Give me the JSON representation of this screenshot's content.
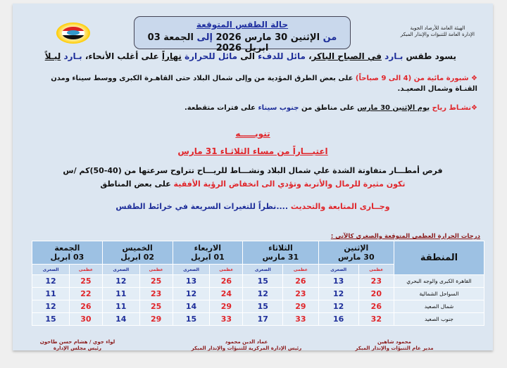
{
  "header": {
    "org_line1": "الهيئة العامة للأرصاد الجوية",
    "org_line2": "الإدارة العامة للتنبؤات والإنذار المبكر",
    "title": "حالة الطقس المتوقعة",
    "period": [
      {
        "t": "من ",
        "c": "blue"
      },
      {
        "t": "الإثنين 30 مارس 2026 ",
        "c": "dk"
      },
      {
        "t": "إلى",
        "c": "blue"
      },
      {
        "t": " الجمعة 03 ابريل 2026",
        "c": "dk"
      }
    ]
  },
  "summary": [
    {
      "t": "يسود طقس ",
      "c": "dk"
    },
    {
      "t": "بـارد ",
      "c": "blue"
    },
    {
      "t": "في الصباح الباكر",
      "c": "dk",
      "u": 1
    },
    {
      "t": "، ",
      "c": "dk"
    },
    {
      "t": "مائل للدفء",
      "c": "blue"
    },
    {
      "t": " الى ",
      "c": "dk"
    },
    {
      "t": "مائل للحرارة ",
      "c": "blue"
    },
    {
      "t": "نهاراً",
      "c": "dk",
      "u": 1
    },
    {
      "t": " على أغلب الأنحاء، ",
      "c": "dk"
    },
    {
      "t": "بـارد ",
      "c": "blue"
    },
    {
      "t": "ليـلاً",
      "c": "dk",
      "u": 1
    }
  ],
  "bullets": [
    [
      {
        "t": "❖ ",
        "c": "red"
      },
      {
        "t": "شبورة مائية من (4 الى 9 صباحاً)",
        "c": "red"
      },
      {
        "t": " على بعض الطرق المؤدية من وإلى شمال البلاد حتى القاهـرة الكبرى ووسط سيناء ومدن القنـاة وشمال الصعيـد.",
        "c": "dk"
      }
    ],
    [
      {
        "t": "❖",
        "c": "red"
      },
      {
        "t": "نشـاط رياح ",
        "c": "red"
      },
      {
        "t": "يوم الإثنين 30 مارس",
        "c": "dk",
        "u": 1
      },
      {
        "t": " على مناطق من ",
        "c": "dk"
      },
      {
        "t": "جنوب سيناء",
        "c": "blue"
      },
      {
        "t": " على فترات متقطعة.",
        "c": "dk"
      }
    ]
  ],
  "notice": {
    "title": "تنويـــــه",
    "subtitle": "اعتبـــاراً من مساء الثلاثـاء 31 مارس",
    "line1": "فرص أمطـــار متفاوتة الشدة علي شمال البلاد ونشـــاط للريـــاح تتراوح سرعتها من (40-50)كم /س",
    "line2": [
      {
        "t": "تكون مثيرة للرمال والأتربة وتؤدي الى انخفاض الرؤية الأفقية",
        "c": "red"
      },
      {
        "t": " على بعض المناطق",
        "c": "dk"
      }
    ],
    "line3": [
      {
        "t": "وجــارى المتابعة والتحديث",
        "c": "red"
      },
      {
        "t": " ....نظراً للتغيرات السريعة في خرائط الطقس",
        "c": "blue"
      }
    ]
  },
  "table": {
    "caption": "درجات الحرارة العظمى المتوقعة والصغرى كالآتى :",
    "region_header": "المنطقة",
    "days": [
      {
        "day": "الإثنين",
        "date": "30 مارس"
      },
      {
        "day": "الثلاثاء",
        "date": "31 مارس"
      },
      {
        "day": "الاربعاء",
        "date": "01 ابريل"
      },
      {
        "day": "الخميس",
        "date": "02 ابريل"
      },
      {
        "day": "الجمعة",
        "date": "03 ابريل"
      }
    ],
    "max_label": "عظمى",
    "min_label": "الصغرى",
    "rows": [
      {
        "region": "القاهرة الكبرى والوجه البحري",
        "values": [
          [
            23,
            13
          ],
          [
            26,
            15
          ],
          [
            26,
            13
          ],
          [
            25,
            12
          ],
          [
            25,
            12
          ]
        ]
      },
      {
        "region": "السواحل الشمالية",
        "values": [
          [
            20,
            12
          ],
          [
            23,
            12
          ],
          [
            24,
            12
          ],
          [
            23,
            11
          ],
          [
            22,
            11
          ]
        ]
      },
      {
        "region": "شمال الصعيد",
        "values": [
          [
            26,
            12
          ],
          [
            29,
            15
          ],
          [
            29,
            14
          ],
          [
            25,
            11
          ],
          [
            26,
            12
          ]
        ]
      },
      {
        "region": "جنوب الصعيد",
        "values": [
          [
            32,
            16
          ],
          [
            33,
            17
          ],
          [
            33,
            15
          ],
          [
            29,
            14
          ],
          [
            30,
            15
          ]
        ]
      }
    ]
  },
  "signatures": [
    {
      "name": "محمود شاهين",
      "role": "مدير عام التنبؤات والإنذار المبكر"
    },
    {
      "name": "عماد الدين محمود",
      "role": "رئيس الإدارة المركزية للتنبؤات والإنذار المبكر"
    },
    {
      "name": "لواء جوي / هشام حسن طاحون",
      "role": "رئيس مجلس الإدارة"
    }
  ],
  "colors": {
    "red": "#e0262b",
    "blue": "#1f2f9a",
    "panel": "#dce6f1",
    "table_header": "#9dc1e3"
  }
}
